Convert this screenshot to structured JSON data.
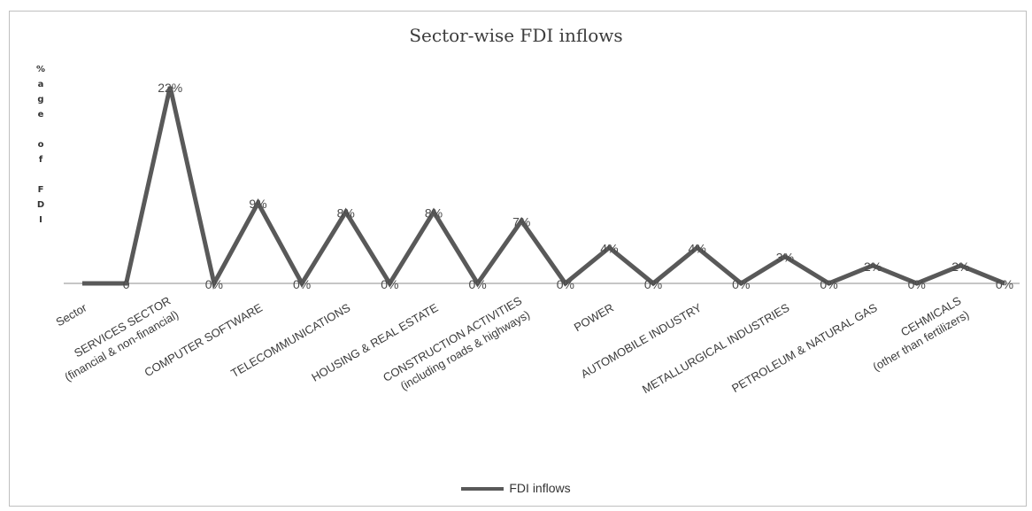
{
  "chart_data": {
    "type": "line",
    "title": "Sector-wise FDI inflows",
    "ylabel": "%\na\ng\ne\n\no\nf\n\nF\nD\nI",
    "ylim": [
      0,
      22
    ],
    "legend_position": "bottom",
    "grid": false,
    "line_color": "#595959",
    "categories": [
      "Sector",
      "",
      "SERVICES SECTOR\n(financial & non-financial)",
      "",
      "COMPUTER SOFTWARE",
      "",
      "TELECOMMUNICATIONS",
      "",
      "HOUSING & REAL ESTATE",
      "",
      "CONSTRUCTION ACTIVITIES\n(including roads & highways)",
      "",
      "POWER",
      "",
      "AUTOMOBILE INDUSTRY",
      "",
      "METALLURGICAL INDUSTRIES",
      "",
      "PETROLEUM & NATURAL GAS",
      "",
      "CEHMICALS\n(other than fertilizers)",
      ""
    ],
    "series": [
      {
        "name": "FDI inflows",
        "values": [
          0,
          0,
          22,
          0,
          9,
          0,
          8,
          0,
          8,
          0,
          7,
          0,
          4,
          0,
          4,
          0,
          3,
          0,
          2,
          0,
          2,
          0
        ],
        "labels": [
          "",
          "0",
          "22%",
          "0%",
          "9%",
          "0%",
          "8%",
          "0%",
          "8%",
          "0%",
          "7%",
          "0%",
          "4%",
          "0%",
          "4%",
          "0%",
          "3%",
          "0%",
          "2%",
          "0%",
          "2%",
          "0%"
        ]
      }
    ]
  }
}
